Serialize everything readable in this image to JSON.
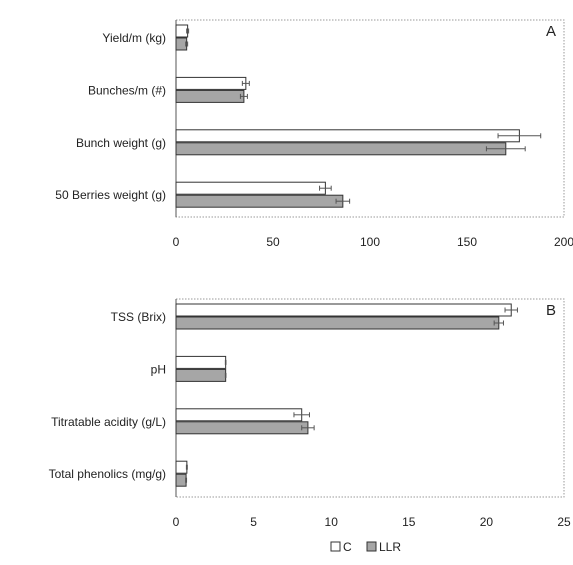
{
  "chart_data": [
    {
      "type": "bar",
      "orientation": "horizontal",
      "panel_label": "A",
      "categories": [
        "Yield/m (kg)",
        "Bunches/m (#)",
        "Bunch weight (g)",
        "50 Berries weight (g)"
      ],
      "series": [
        {
          "name": "C",
          "values": [
            6,
            36,
            177,
            77
          ],
          "errors": [
            0.5,
            1.8,
            11,
            3
          ],
          "color": "#ffffff"
        },
        {
          "name": "LLR",
          "values": [
            5.5,
            35,
            170,
            86
          ],
          "errors": [
            0.5,
            1.8,
            10,
            3.5
          ],
          "color": "#a6a6a6"
        }
      ],
      "xlim": [
        0,
        200
      ],
      "xticks": [
        "0",
        "50",
        "100",
        "150",
        "200"
      ],
      "grid": false
    },
    {
      "type": "bar",
      "orientation": "horizontal",
      "panel_label": "B",
      "categories": [
        "TSS (Brix)",
        "pH",
        "Titratable acidity (g/L)",
        "Total phenolics (mg/g)"
      ],
      "series": [
        {
          "name": "C",
          "values": [
            21.6,
            3.2,
            8.1,
            0.7
          ],
          "errors": [
            0.4,
            0.02,
            0.5,
            0.03
          ],
          "color": "#ffffff"
        },
        {
          "name": "LLR",
          "values": [
            20.8,
            3.2,
            8.5,
            0.65
          ],
          "errors": [
            0.3,
            0.02,
            0.4,
            0.03
          ],
          "color": "#a6a6a6"
        }
      ],
      "xlim": [
        0,
        25
      ],
      "xticks": [
        "0",
        "5",
        "10",
        "15",
        "20",
        "25"
      ],
      "grid": false
    }
  ],
  "legend": {
    "placement": "bottom-center",
    "items": [
      {
        "label": "C",
        "color": "#ffffff"
      },
      {
        "label": "LLR",
        "color": "#a6a6a6"
      }
    ]
  }
}
